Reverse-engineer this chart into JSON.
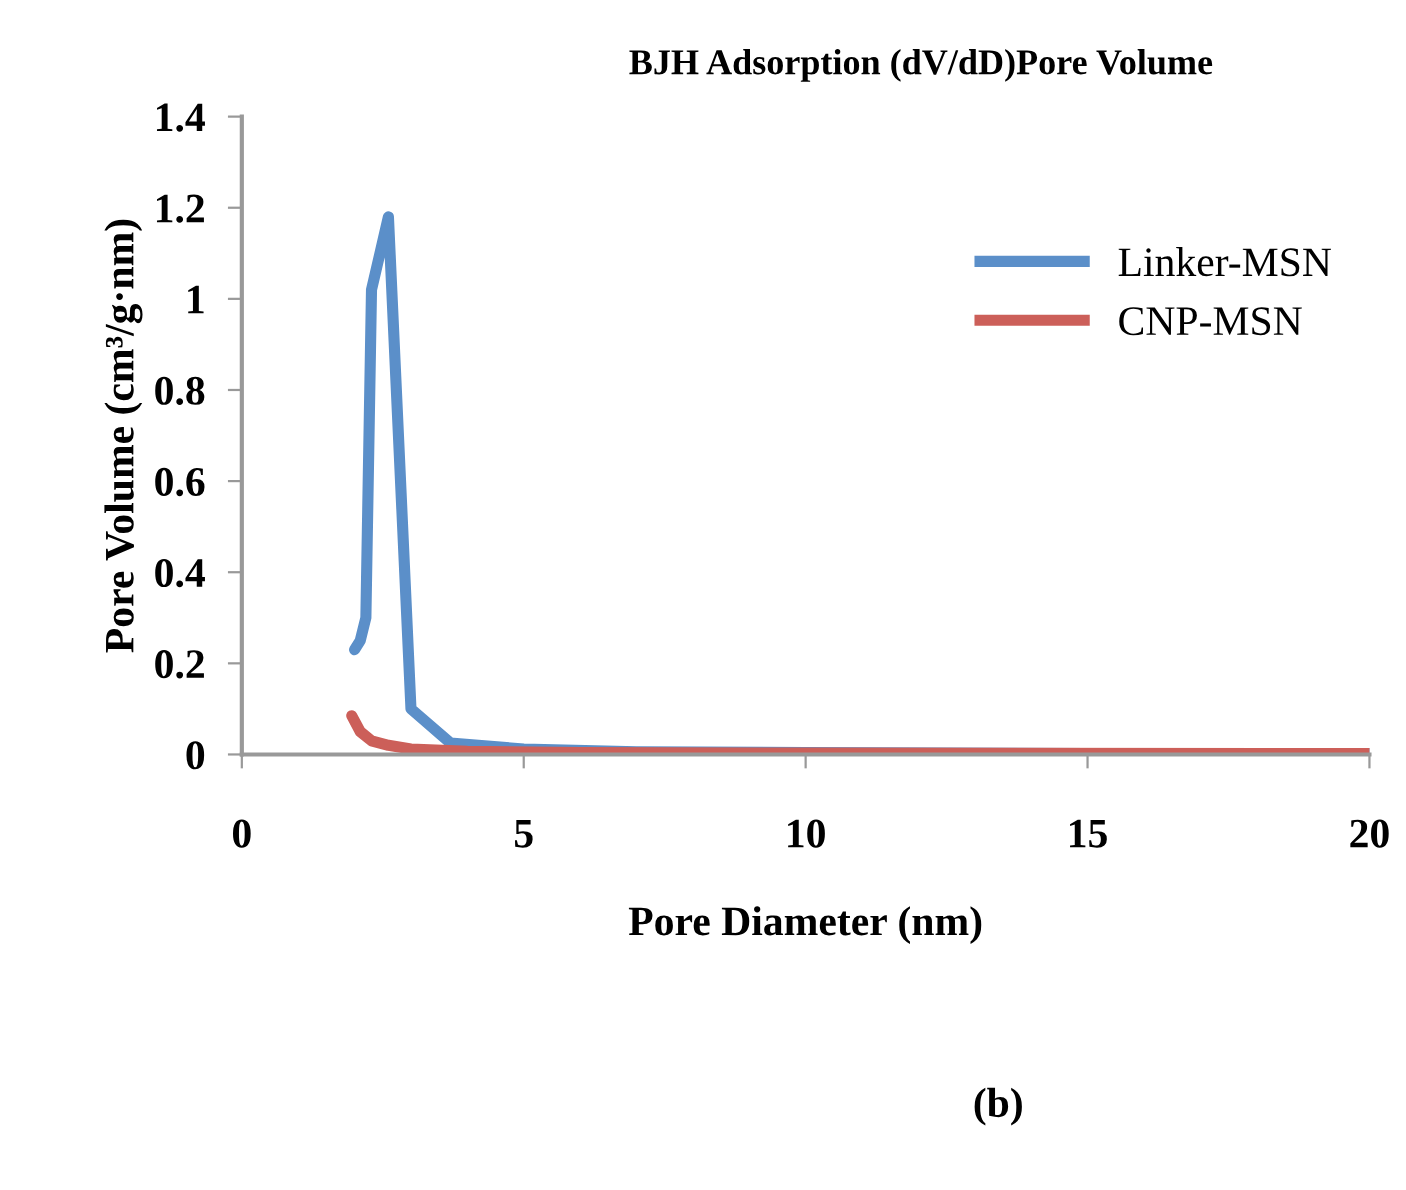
{
  "chart_data": {
    "type": "line",
    "title": "BJH Adsorption (dV/dD)Pore Volume",
    "xlabel": "Pore Diameter (nm)",
    "ylabel": "Pore Volume (cm³/g·nm)",
    "xlim": [
      0,
      20
    ],
    "xticks": [
      0,
      5,
      10,
      15,
      20
    ],
    "ylim": [
      0,
      1.4
    ],
    "yticks": [
      0,
      0.2,
      0.4,
      0.6,
      0.8,
      1,
      1.2,
      1.4
    ],
    "grid": false,
    "legend": "right",
    "marker": "none",
    "line_style": "solid",
    "annotations": [
      "(b)"
    ],
    "series": [
      {
        "name": "Linker-MSN",
        "color": "#5b8fc9",
        "x": [
          2.0,
          2.1,
          2.2,
          2.3,
          2.6,
          3.0,
          3.7,
          5,
          7,
          10,
          15,
          20
        ],
        "values": [
          0.23,
          0.25,
          0.3,
          1.02,
          1.18,
          0.1,
          0.025,
          0.012,
          0.006,
          0.004,
          0.002,
          0.002
        ]
      },
      {
        "name": "CNP-MSN",
        "color": "#cc5f59",
        "x": [
          1.95,
          2.1,
          2.3,
          2.6,
          3.0,
          4,
          6,
          10,
          20
        ],
        "values": [
          0.085,
          0.05,
          0.03,
          0.02,
          0.012,
          0.007,
          0.004,
          0.003,
          0.002
        ]
      }
    ]
  }
}
